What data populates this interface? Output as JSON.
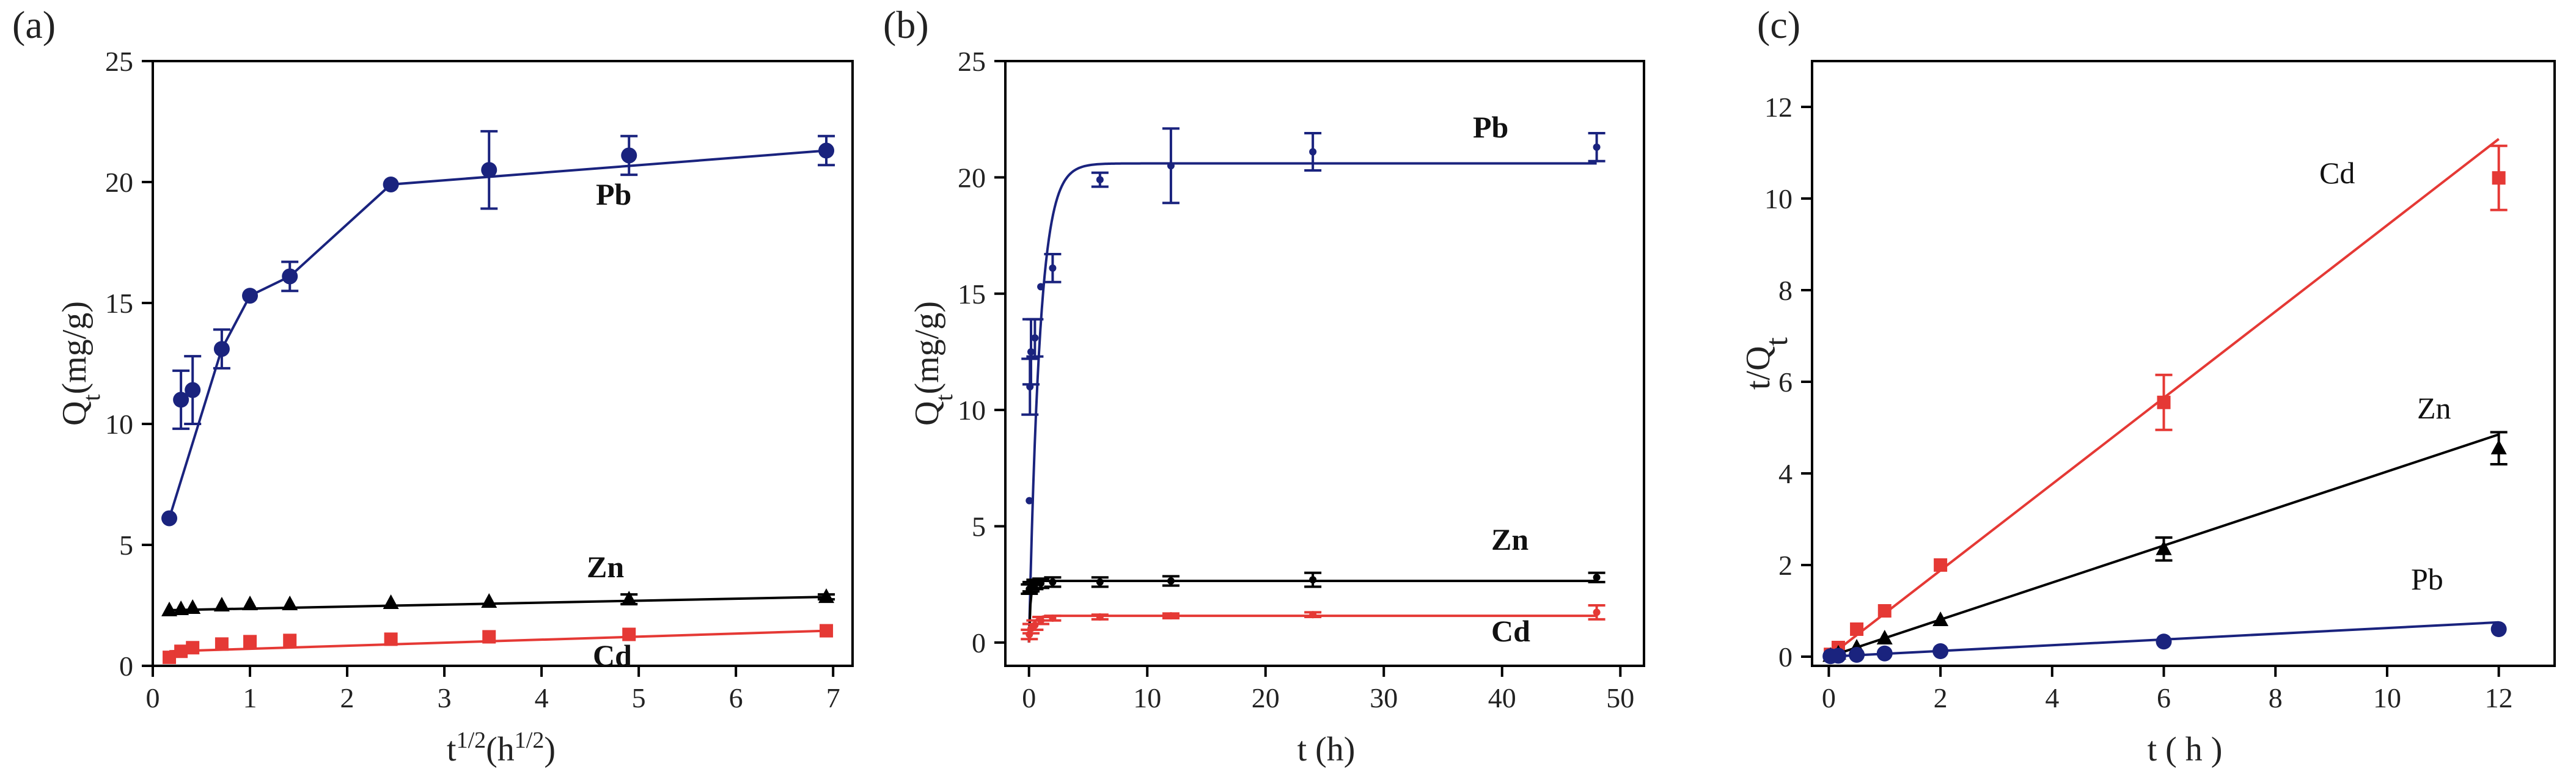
{
  "chart_data": [
    {
      "type": "line",
      "panel_label": "(a)",
      "xlabel": "t1/2(h1/2)",
      "xlabel_parts": {
        "base": "t",
        "base_sup": "1/2",
        "paren_base": "(h",
        "paren_sup": "1/2",
        "close": ")"
      },
      "ylabel": "Qt(mg/g)",
      "ylabel_parts": {
        "base": "Q",
        "sub": "t",
        "rest": "(mg/g)"
      },
      "xlim": [
        0,
        7.2
      ],
      "ylim": [
        0,
        25
      ],
      "xticks": [
        "0",
        "1",
        "2",
        "3",
        "4",
        "5",
        "6",
        "7"
      ],
      "yticks": [
        "0",
        "5",
        "10",
        "15",
        "20",
        "25"
      ],
      "series": [
        {
          "name": "Pb",
          "color": "#1a237e",
          "marker": "circle",
          "label_bold": true,
          "x": [
            0.17,
            0.29,
            0.41,
            0.71,
            1.0,
            1.41,
            2.45,
            3.46,
            4.9,
            6.93
          ],
          "y": [
            6.1,
            11.0,
            11.4,
            13.1,
            15.3,
            16.1,
            19.9,
            20.5,
            21.1,
            21.3
          ],
          "err": [
            0,
            1.2,
            1.4,
            0.8,
            0,
            0.6,
            0,
            1.6,
            0.8,
            0.6
          ],
          "line": "segments",
          "line_points": {
            "x": [
              0.17,
              0.71,
              1.0,
              1.41,
              2.45,
              6.93
            ],
            "y": [
              6.1,
              13.1,
              15.3,
              16.1,
              19.9,
              21.3
            ]
          }
        },
        {
          "name": "Zn",
          "color": "#000000",
          "marker": "triangle",
          "label_bold": true,
          "x": [
            0.17,
            0.29,
            0.41,
            0.71,
            1.0,
            1.41,
            2.45,
            3.46,
            4.9,
            6.93
          ],
          "y": [
            2.3,
            2.35,
            2.4,
            2.5,
            2.55,
            2.55,
            2.6,
            2.65,
            2.75,
            2.85
          ],
          "err": [
            0,
            0,
            0,
            0,
            0,
            0,
            0,
            0,
            0.2,
            0.1
          ],
          "line": "fit",
          "fit": [
            0.17,
            2.3,
            6.93,
            2.85
          ]
        },
        {
          "name": "Cd",
          "color": "#e53935",
          "marker": "square",
          "label_bold": true,
          "x": [
            0.17,
            0.29,
            0.41,
            0.71,
            1.0,
            1.41,
            2.45,
            3.46,
            4.9,
            6.93
          ],
          "y": [
            0.35,
            0.6,
            0.75,
            0.9,
            1.0,
            1.05,
            1.1,
            1.2,
            1.3,
            1.45
          ],
          "err": [
            0,
            0,
            0,
            0,
            0,
            0,
            0,
            0,
            0,
            0
          ],
          "line": "fit",
          "fit": [
            0.17,
            0.6,
            6.93,
            1.45
          ]
        }
      ]
    },
    {
      "type": "line",
      "panel_label": "(b)",
      "xlabel": "t (h)",
      "ylabel": "Qt(mg/g)",
      "ylabel_parts": {
        "base": "Q",
        "sub": "t",
        "rest": "(mg/g)"
      },
      "xlim": [
        -2,
        52
      ],
      "ylim": [
        -1,
        25
      ],
      "xticks": [
        "0",
        "10",
        "20",
        "30",
        "40",
        "50"
      ],
      "yticks": [
        "0",
        "5",
        "10",
        "15",
        "20",
        "25"
      ],
      "series": [
        {
          "name": "Pb",
          "color": "#1a237e",
          "marker": "dot",
          "label_bold": true,
          "x": [
            0.03,
            0.08,
            0.17,
            0.5,
            1.0,
            2.0,
            6.0,
            12.0,
            24.0,
            48.0
          ],
          "y": [
            6.1,
            11.0,
            12.5,
            13.1,
            15.3,
            16.1,
            19.9,
            20.5,
            21.1,
            21.3
          ],
          "err": [
            0,
            1.2,
            1.4,
            0.8,
            0,
            0.6,
            0.3,
            1.6,
            0.8,
            0.6
          ],
          "line": "pfo",
          "qe": 20.6,
          "k": 1.1
        },
        {
          "name": "Zn",
          "color": "#000000",
          "marker": "dot",
          "label_bold": true,
          "x": [
            0.03,
            0.17,
            0.5,
            1.0,
            2.0,
            6.0,
            12.0,
            24.0,
            48.0
          ],
          "y": [
            2.3,
            2.4,
            2.5,
            2.55,
            2.6,
            2.6,
            2.65,
            2.7,
            2.8
          ],
          "err": [
            0.2,
            0.2,
            0.2,
            0.2,
            0.2,
            0.2,
            0.2,
            0.3,
            0.2
          ],
          "line": "pfo",
          "qe": 2.65,
          "k": 8
        },
        {
          "name": "Cd",
          "color": "#e53935",
          "marker": "dot",
          "label_bold": true,
          "x": [
            0.03,
            0.17,
            0.5,
            1.0,
            2.0,
            6.0,
            12.0,
            24.0,
            48.0
          ],
          "y": [
            0.35,
            0.6,
            0.75,
            0.95,
            1.05,
            1.1,
            1.15,
            1.2,
            1.3
          ],
          "err": [
            0.2,
            0.2,
            0.2,
            0.15,
            0.1,
            0.1,
            0.1,
            0.1,
            0.3
          ],
          "line": "pfo",
          "qe": 1.15,
          "k": 3
        }
      ]
    },
    {
      "type": "line",
      "panel_label": "(c)",
      "xlabel": "t ( h )",
      "ylabel": "t/Qt",
      "ylabel_parts": {
        "base": "t/Q",
        "sub": "t",
        "rest": ""
      },
      "xlim": [
        -0.3,
        13
      ],
      "ylim": [
        -0.2,
        13
      ],
      "xticks": [
        "0",
        "2",
        "4",
        "6",
        "8",
        "10",
        "12"
      ],
      "yticks": [
        "0",
        "2",
        "4",
        "6",
        "8",
        "10",
        "12"
      ],
      "series": [
        {
          "name": "Cd",
          "color": "#e53935",
          "marker": "square",
          "label_bold": false,
          "x": [
            0.03,
            0.17,
            0.5,
            1.0,
            2.0,
            6.0,
            12.0
          ],
          "y": [
            0.05,
            0.2,
            0.6,
            1.0,
            2.0,
            5.55,
            10.45
          ],
          "err": [
            0,
            0,
            0,
            0,
            0,
            0.6,
            0.7
          ],
          "line": "fit",
          "fit": [
            0,
            0,
            12,
            11.3
          ]
        },
        {
          "name": "Zn",
          "color": "#000000",
          "marker": "triangle",
          "label_bold": false,
          "x": [
            0.03,
            0.17,
            0.5,
            1.0,
            2.0,
            6.0,
            12.0
          ],
          "y": [
            0.02,
            0.07,
            0.2,
            0.4,
            0.8,
            2.35,
            4.55
          ],
          "err": [
            0,
            0,
            0,
            0,
            0,
            0.25,
            0.35
          ],
          "line": "fit",
          "fit": [
            0,
            0,
            12,
            4.85
          ]
        },
        {
          "name": "Pb",
          "color": "#1a237e",
          "marker": "circle",
          "label_bold": false,
          "x": [
            0.03,
            0.17,
            0.5,
            1.0,
            2.0,
            6.0,
            12.0
          ],
          "y": [
            0.01,
            0.02,
            0.04,
            0.07,
            0.12,
            0.33,
            0.6
          ],
          "err": [
            0,
            0,
            0,
            0,
            0,
            0,
            0
          ],
          "line": "fit",
          "fit": [
            0,
            0,
            12,
            0.75
          ]
        }
      ]
    }
  ]
}
